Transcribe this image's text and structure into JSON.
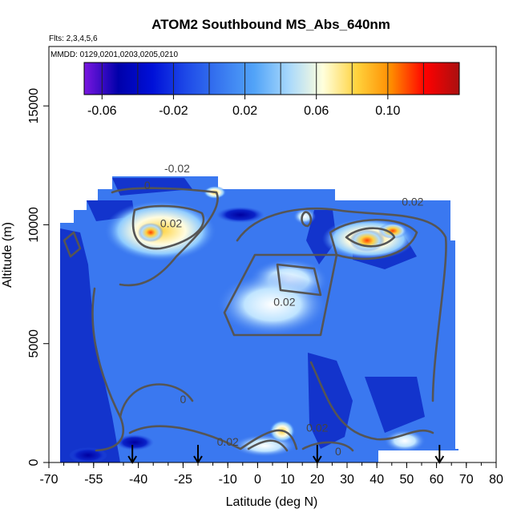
{
  "chart_data": {
    "type": "heatmap",
    "title": "ATOM2 Southbound MS_Abs_640nm",
    "subtitle_lines": [
      "Flts: 2,3,4,5,6",
      "MMDD: 0129,0201,0203,0205,0210"
    ],
    "xlabel": "Latitude (deg N)",
    "ylabel": "Altitude (m)",
    "xlim": [
      -70,
      80
    ],
    "ylim": [
      0,
      17500
    ],
    "x_ticks": [
      -70,
      -55,
      -40,
      -25,
      -10,
      0,
      10,
      20,
      30,
      40,
      50,
      60,
      70,
      80
    ],
    "x_tick_labels": [
      "-70",
      "-55",
      "-40",
      "-25",
      "-10",
      "0",
      "10",
      "20",
      "30",
      "40",
      "50",
      "60",
      "70",
      "80"
    ],
    "y_ticks": [
      0,
      5000,
      10000,
      15000
    ],
    "y_tick_labels": [
      "0",
      "5000",
      "10000",
      "15000"
    ],
    "colorbar": {
      "range": [
        -0.07,
        0.14
      ],
      "ticks": [
        -0.06,
        -0.02,
        0.02,
        0.06,
        0.1
      ],
      "tick_labels": [
        "-0.06",
        "-0.02",
        "0.02",
        "0.06",
        "0.10"
      ],
      "colors": [
        "#7a16e0",
        "#0000aa",
        "#0010d8",
        "#1e4ae8",
        "#3878f0",
        "#52a4f8",
        "#a8d8fc",
        "#ffffdc",
        "#ffd23c",
        "#ff8c00",
        "#ff0000",
        "#aa1010"
      ]
    },
    "flight_markers_latitude": [
      -42,
      -20,
      20,
      61
    ],
    "contour_labels": [
      {
        "text": "0",
        "x": -37,
        "y": 11500
      },
      {
        "text": "-0.02",
        "x": -27,
        "y": 12200
      },
      {
        "text": "0.02",
        "x": -29,
        "y": 9900
      },
      {
        "text": "0.02",
        "x": 9,
        "y": 6600
      },
      {
        "text": "0.02",
        "x": 52,
        "y": 10800
      },
      {
        "text": "0",
        "x": -25,
        "y": 2500
      },
      {
        "text": "0.02",
        "x": -10,
        "y": 700
      },
      {
        "text": "0.02",
        "x": 20,
        "y": 1300
      },
      {
        "text": "0",
        "x": 27,
        "y": 300
      }
    ]
  }
}
